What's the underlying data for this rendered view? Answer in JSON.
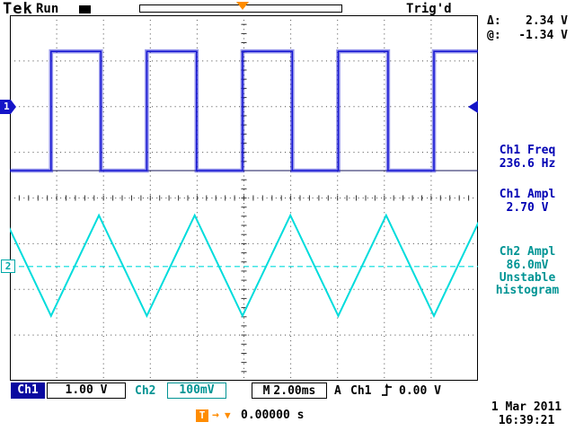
{
  "header": {
    "brand": "Tek",
    "acq_state": "Run",
    "trigger_status": "Trig'd",
    "trigger_marker": "T"
  },
  "markers": {
    "ch1_label": "1",
    "ch2_label": "2"
  },
  "sidebar": {
    "delta_label": "Δ:",
    "delta_value": "2.34 V",
    "at_label": "@:",
    "at_value": "-1.34 V",
    "ch1_freq_label": "Ch1 Freq",
    "ch1_freq_value": "236.6 Hz",
    "ch1_ampl_label": "Ch1 Ampl",
    "ch1_ampl_value": "2.70 V",
    "ch2_ampl_label": "Ch2 Ampl",
    "ch2_ampl_value": "86.0mV",
    "ch2_note_line1": "Unstable",
    "ch2_note_line2": "histogram"
  },
  "statusbar": {
    "ch1_label": "Ch1",
    "ch1_scale": "1.00 V",
    "ch2_label": "Ch2",
    "ch2_scale": "100mV",
    "timebase_label": "M",
    "timebase": "2.00ms",
    "trigger_mode": "A",
    "trigger_source": "Ch1",
    "trigger_level": "0.00 V",
    "date": "1 Mar 2011",
    "time": "16:39:21"
  },
  "horizontal": {
    "t_label": "T",
    "arrow_icon": "→",
    "marker_icon": "▼",
    "position": "0.00000 s"
  },
  "colors": {
    "ch1_trace": "#1414d2",
    "ch2_trace": "#00dcdc",
    "trigger_orange": "#ff8c00",
    "ch1_text": "#0000b4",
    "ch2_text": "#009494"
  },
  "chart_data": {
    "type": "line",
    "title": "Oscilloscope waveform display",
    "x_axis": {
      "divisions": 10,
      "time_per_div": "2.00ms",
      "total_window": "20.0ms"
    },
    "y_axis": {
      "divisions": 8
    },
    "grid": "dotted 10x8 with center tick axes",
    "trigger": {
      "source": "Ch1",
      "slope": "rising",
      "level": "0.00 V",
      "position": "0.00000 s",
      "status": "Trig'd"
    },
    "series": [
      {
        "name": "Ch1",
        "waveform": "square",
        "color": "#1414d2",
        "volts_per_div": "1.00 V",
        "frequency_hz": 236.6,
        "amplitude_v": 2.7,
        "high_div": 0.79,
        "low_div": 3.4,
        "ground_div": 3.4,
        "first_rise_div": 0.88,
        "period_div": 2.045,
        "duty": 0.52,
        "noise": "fuzzy trace"
      },
      {
        "name": "Ch2",
        "waveform": "triangle",
        "color": "#00dcdc",
        "volts_per_div": "100mV",
        "amplitude": "86.0mV",
        "peak_div": 4.38,
        "trough_div": 6.58,
        "baseline_div": 5.5,
        "first_trough_div": 0.88,
        "period_div": 2.045
      }
    ]
  }
}
